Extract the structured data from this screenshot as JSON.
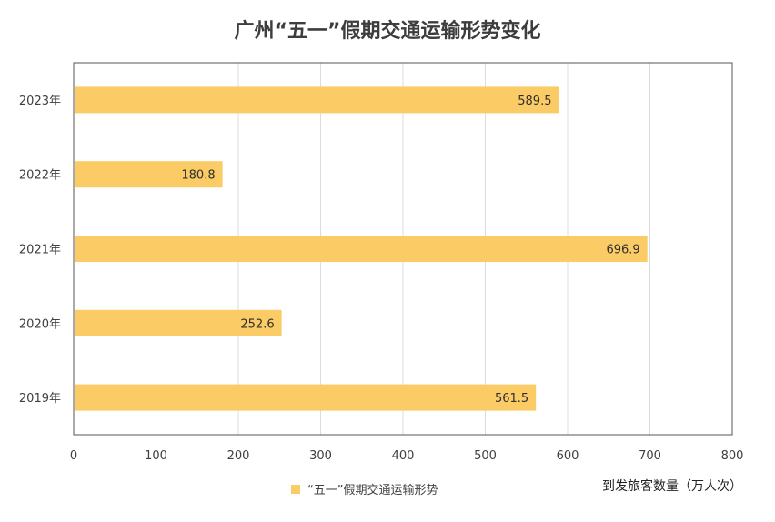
{
  "title": "广州“五一”假期交通运输形势变化",
  "colors": {
    "bar": "#FBCC66",
    "grid": "#dcdcdc",
    "frame": "#555555"
  },
  "chart_data": {
    "type": "bar",
    "orientation": "horizontal",
    "title": "广州“五一”假期交通运输形势变化",
    "categories": [
      "2023年",
      "2022年",
      "2021年",
      "2020年",
      "2019年"
    ],
    "series": [
      {
        "name": "“五一”假期交通运输形势",
        "values": [
          589.5,
          180.8,
          696.9,
          252.6,
          561.5
        ]
      }
    ],
    "data_labels": [
      "589.5",
      "180.8",
      "696.9",
      "252.6",
      "561.5"
    ],
    "xlabel": "到发旅客数量（万人次）",
    "ylabel": "",
    "xlim": [
      0,
      800
    ],
    "xticks": [
      0,
      100,
      200,
      300,
      400,
      500,
      600,
      700,
      800
    ],
    "xtick_labels": [
      "0",
      "100",
      "200",
      "300",
      "400",
      "500",
      "600",
      "700",
      "800"
    ],
    "grid": "vertical",
    "legend_position": "bottom"
  }
}
